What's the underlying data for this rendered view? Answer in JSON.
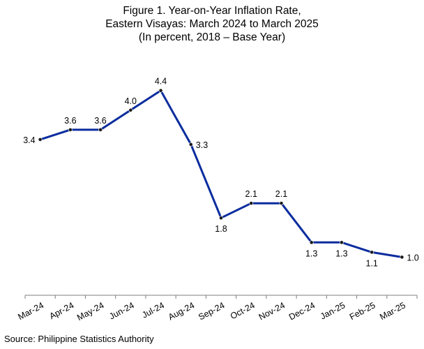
{
  "chart_data": {
    "type": "line",
    "title_lines": [
      "Figure 1. Year-on-Year Inflation Rate,",
      "Eastern Visayas: March 2024 to March 2025",
      "(In percent, 2018 – Base Year)"
    ],
    "categories": [
      "Mar-24",
      "Apr-24",
      "May-24",
      "Jun-24",
      "Jul-24",
      "Aug-24",
      "Sep-24",
      "Oct-24",
      "Nov-24",
      "Dec-24",
      "Jan-25",
      "Feb-25",
      "Mar-25"
    ],
    "series": [
      {
        "values": [
          3.4,
          3.6,
          3.6,
          4.0,
          4.4,
          3.3,
          1.8,
          2.1,
          2.1,
          1.3,
          1.3,
          1.1,
          1.0
        ],
        "labels": [
          "3.4",
          "3.6",
          "3.6",
          "4.0",
          "4.4",
          "3.3",
          "1.8",
          "2.1",
          "2.1",
          "1.3",
          "1.3",
          "1.1",
          "1.0"
        ]
      }
    ],
    "xlabel": "",
    "ylabel": "",
    "y_axis_visible": false,
    "grid": false,
    "legend": "none",
    "line_color": "#0a2c9e",
    "marker_color": "#1a1a1a"
  },
  "source": "Source: Philippine Statistics Authority"
}
